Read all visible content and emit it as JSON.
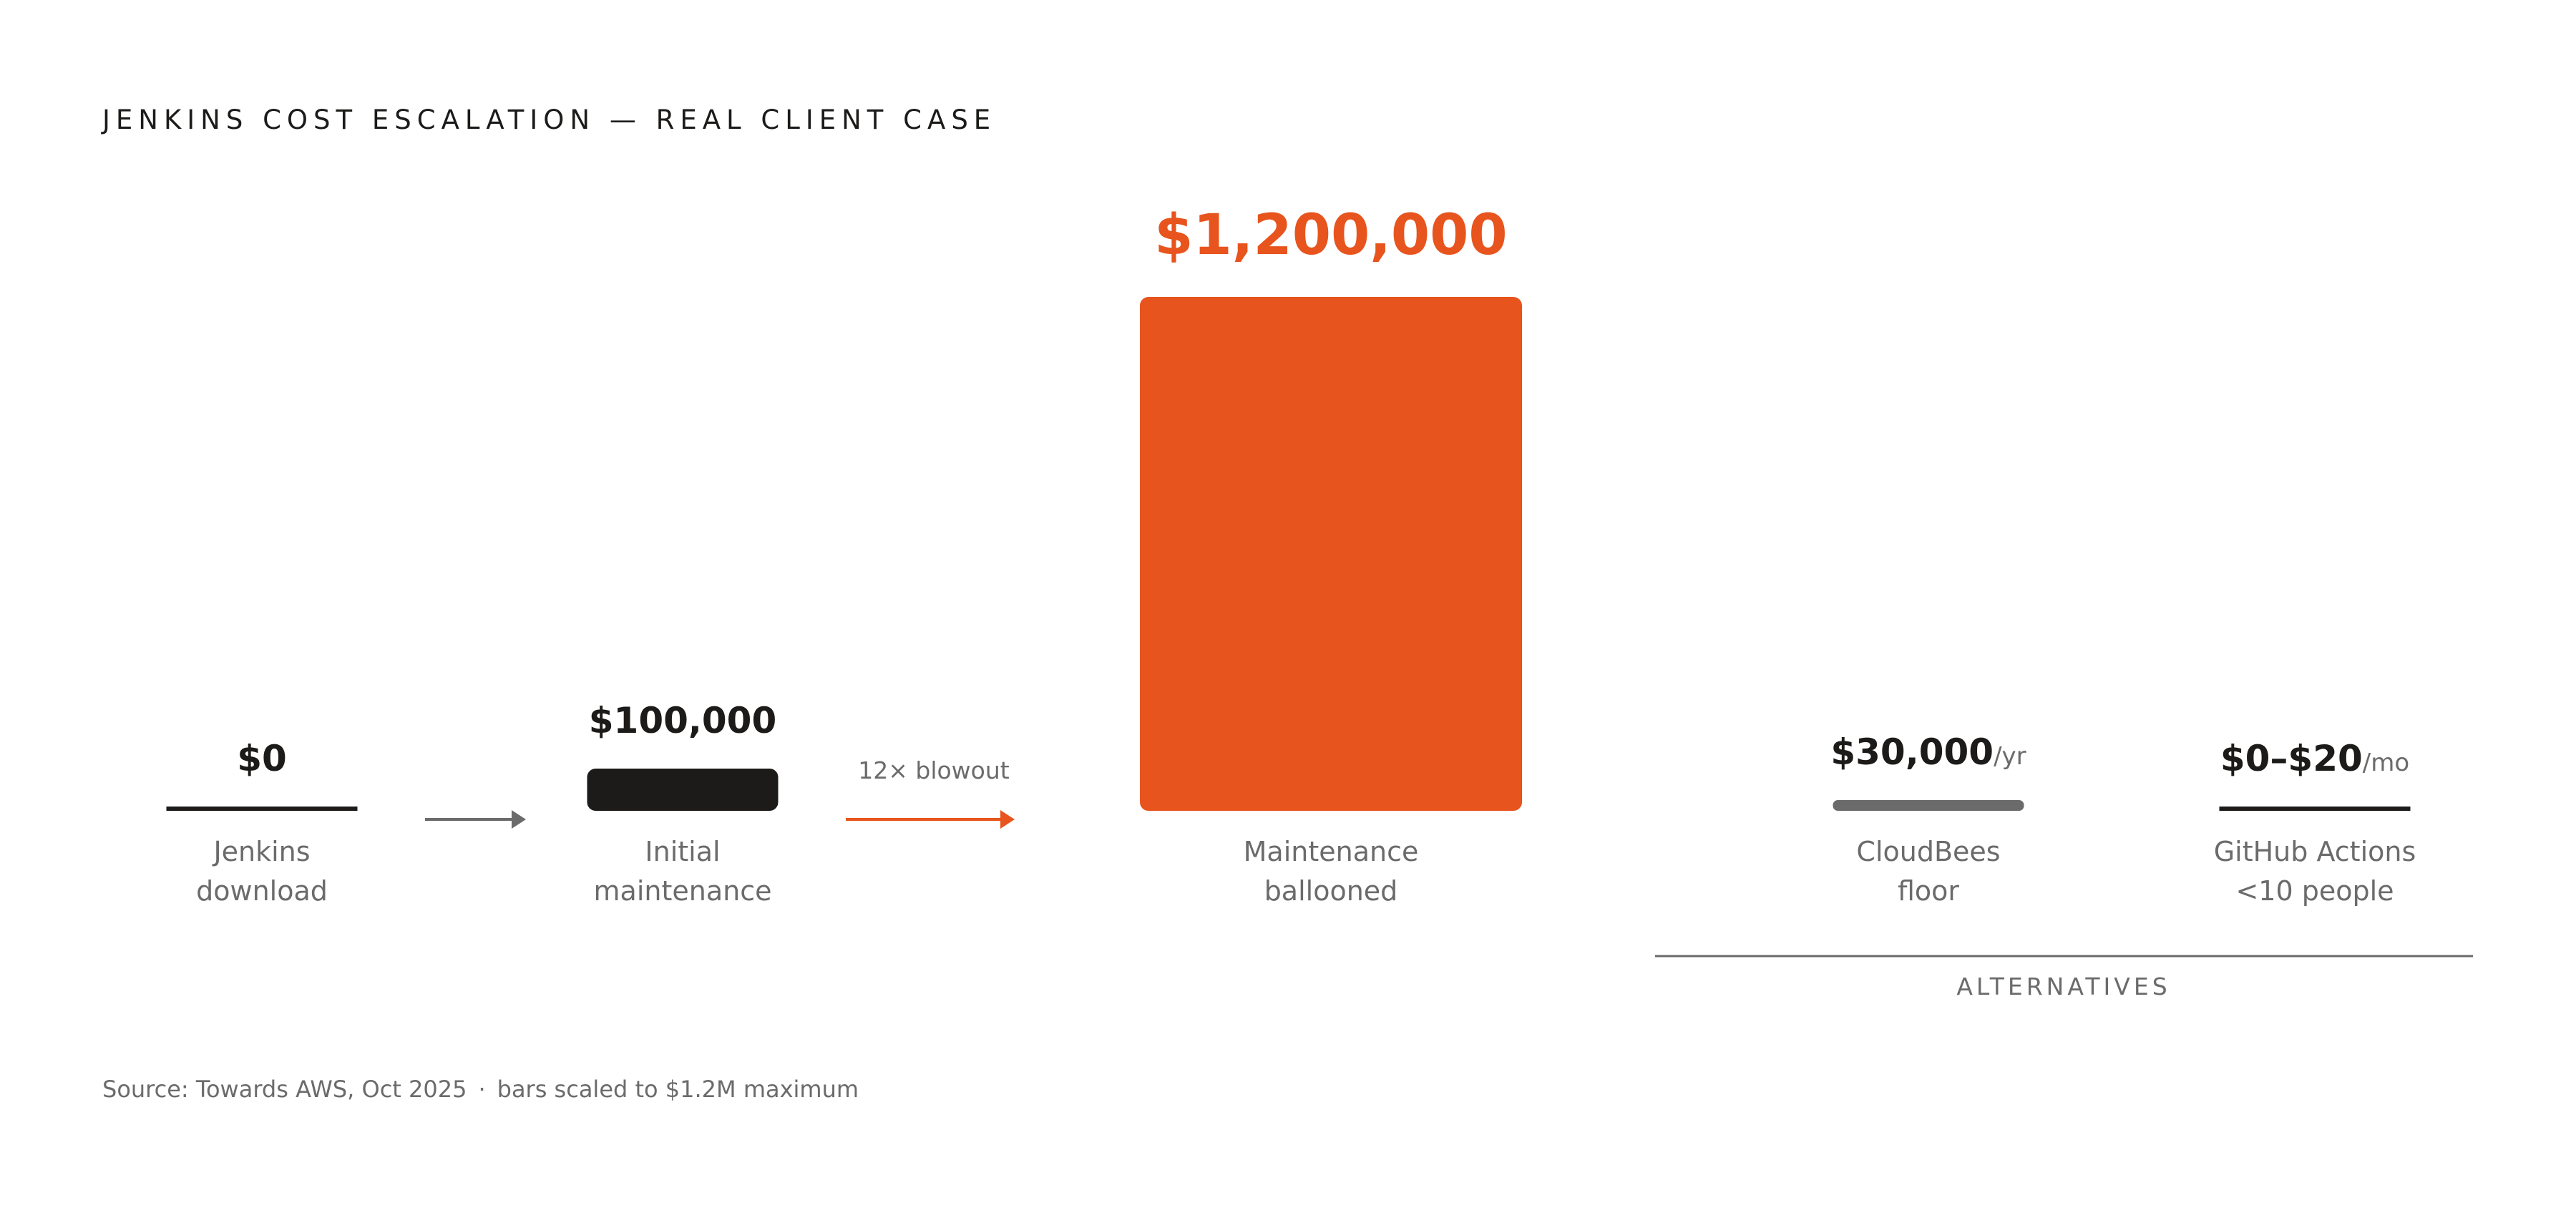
{
  "title": "JENKINS COST ESCALATION — REAL CLIENT CASE",
  "source": {
    "text": "Source: Towards AWS, Oct 2025",
    "separator": "·",
    "note": "bars scaled to $1.2M maximum"
  },
  "colors": {
    "accent": "#e8541d",
    "dark": "#1c1b19",
    "gray": "#6b6b6b",
    "muted_bar": "#6b6b6b"
  },
  "chart_data": {
    "type": "bar",
    "scale_max": 1200000,
    "bars": [
      {
        "id": "jenkins-download",
        "value": 0,
        "label": "$0",
        "unit": "",
        "category": [
          "Jenkins",
          "download"
        ],
        "style": "dark"
      },
      {
        "id": "initial-maintenance",
        "value": 100000,
        "label": "$100,000",
        "unit": "",
        "category": [
          "Initial",
          "maintenance"
        ],
        "style": "dark"
      },
      {
        "id": "maintenance-ballooned",
        "value": 1200000,
        "label": "$1,200,000",
        "unit": "",
        "category": [
          "Maintenance",
          "ballooned"
        ],
        "style": "accent"
      },
      {
        "id": "cloudbees-floor",
        "value": 30000,
        "label": "$30,000",
        "unit": "/yr",
        "category": [
          "CloudBees",
          "floor"
        ],
        "style": "gray"
      },
      {
        "id": "github-actions",
        "value": 20,
        "label": "$0–$20",
        "unit": "/mo",
        "category": [
          "GitHub Actions",
          "<10 people"
        ],
        "style": "dark"
      }
    ],
    "arrows": [
      {
        "from": "jenkins-download",
        "to": "initial-maintenance",
        "label": "",
        "style": "gray"
      },
      {
        "from": "initial-maintenance",
        "to": "maintenance-ballooned",
        "label": "12× blowout",
        "style": "accent"
      }
    ],
    "groups": [
      {
        "label": "ALTERNATIVES",
        "members": [
          "cloudbees-floor",
          "github-actions"
        ]
      }
    ]
  }
}
